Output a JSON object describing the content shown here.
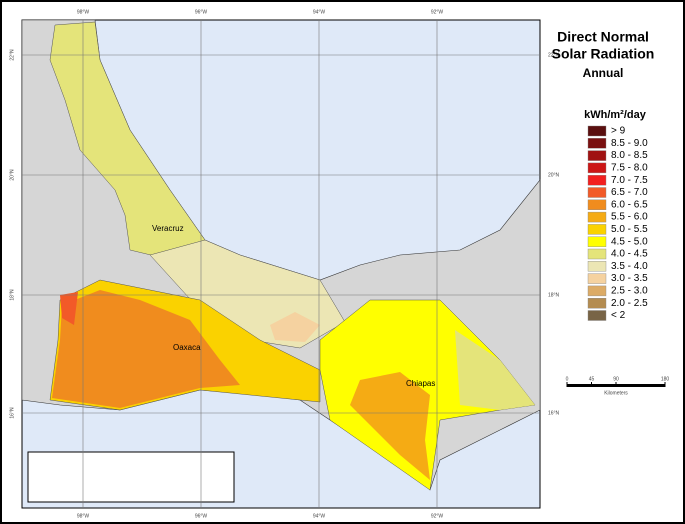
{
  "title_lines": [
    "Direct Normal",
    "Solar Radiation"
  ],
  "subtitle": "Annual",
  "legend": {
    "title": "kWh/m²/day",
    "items": [
      {
        "label": "> 9",
        "color": "#5a0f0f"
      },
      {
        "label": "8.5 - 9.0",
        "color": "#7a1010"
      },
      {
        "label": "8.0 - 8.5",
        "color": "#a01212"
      },
      {
        "label": "7.5 - 8.0",
        "color": "#cc1616"
      },
      {
        "label": "7.0 - 7.5",
        "color": "#f21f1f"
      },
      {
        "label": "6.5 - 7.0",
        "color": "#f25a28"
      },
      {
        "label": "6.0 - 6.5",
        "color": "#f08c1e"
      },
      {
        "label": "5.5 - 6.0",
        "color": "#f5ab14"
      },
      {
        "label": "5.0 - 5.5",
        "color": "#fad200"
      },
      {
        "label": "4.5 - 5.0",
        "color": "#ffff00"
      },
      {
        "label": "4.0 - 4.5",
        "color": "#e4e47a"
      },
      {
        "label": "3.5 - 4.0",
        "color": "#ece6b4"
      },
      {
        "label": "3.0 - 3.5",
        "color": "#f5d2a0"
      },
      {
        "label": "2.5 - 3.0",
        "color": "#dcab66"
      },
      {
        "label": "2.0 - 2.5",
        "color": "#b48c50"
      },
      {
        "label": "< 2",
        "color": "#786446"
      }
    ]
  },
  "places": [
    "Veracruz",
    "Oaxaca",
    "Chiapas"
  ],
  "graticule": {
    "longitudes": [
      "98°W",
      "96°W",
      "94°W",
      "92°W"
    ],
    "latitudes": [
      "22°N",
      "20°N",
      "18°N",
      "16°N"
    ]
  },
  "scale_bar": {
    "ticks": [
      0,
      45,
      90,
      180
    ],
    "unit": "Kilometers"
  }
}
